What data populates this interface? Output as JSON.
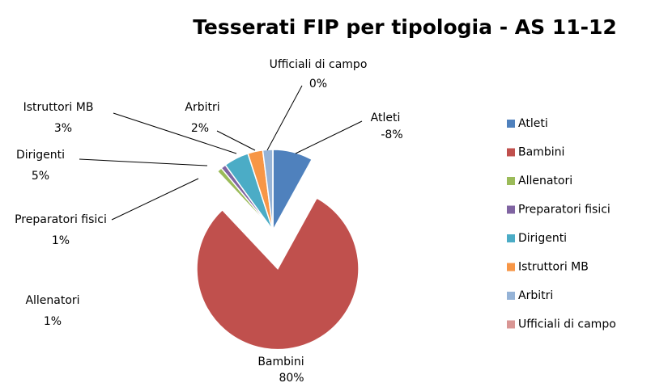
{
  "chart_data": {
    "type": "pie",
    "title": "Tesserati FIP per tipologia - AS 11-12",
    "categories": [
      "Atleti",
      "Bambini",
      "Allenatori",
      "Preparatori fisici",
      "Dirigenti",
      "Istruttori MB",
      "Arbitri",
      "Ufficiali di campo"
    ],
    "values": [
      -8,
      80,
      1,
      1,
      5,
      3,
      2,
      0
    ],
    "value_labels": [
      "-8%",
      "80%",
      "1%",
      "1%",
      "5%",
      "3%",
      "2%",
      "0%"
    ],
    "colors": [
      "#4f81bd",
      "#c0504d",
      "#9bbb59",
      "#8064a2",
      "#4bacc6",
      "#f79646",
      "#95b3d7",
      "#d99694"
    ],
    "legend": "right"
  }
}
